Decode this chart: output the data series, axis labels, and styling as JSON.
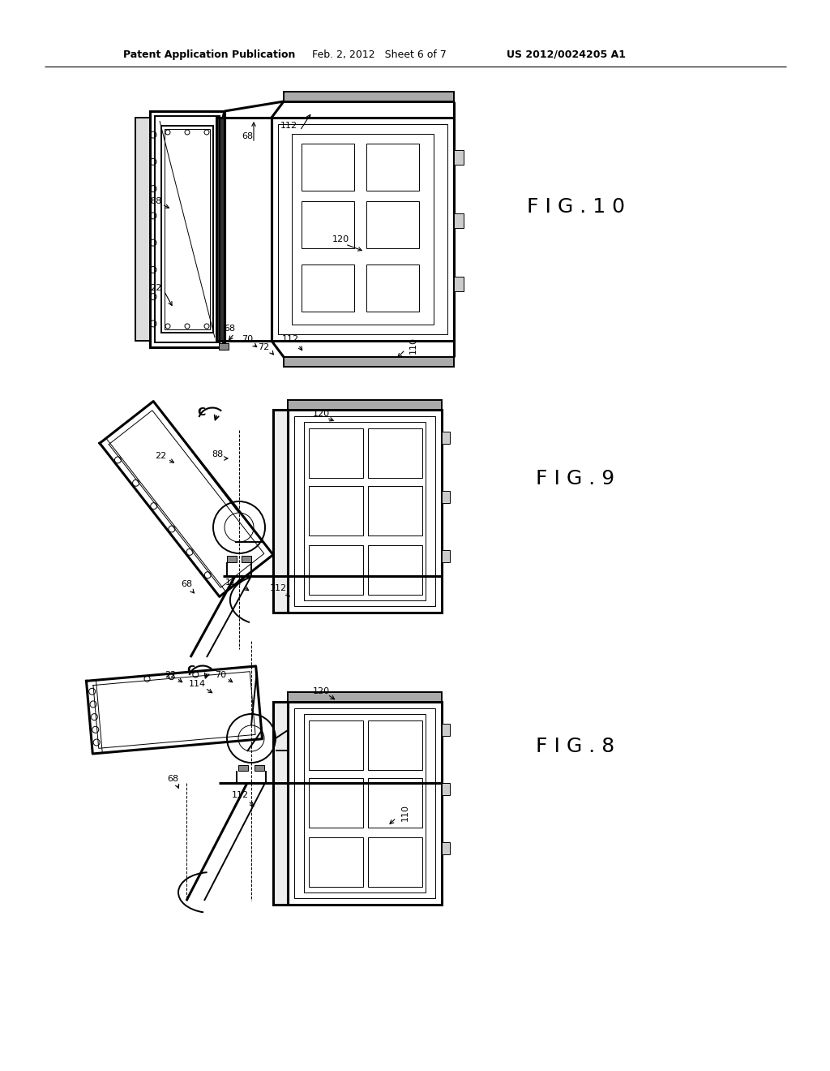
{
  "bg_color": "#ffffff",
  "line_color": "#000000",
  "header_left": "Patent Application Publication",
  "header_mid": "Feb. 2, 2012   Sheet 6 of 7",
  "header_right": "US 2012/0024205 A1",
  "fig_labels": {
    "fig10": "F I G . 1 0",
    "fig9": "F I G . 9",
    "fig8": "F I G . 8"
  },
  "lw_thin": 0.7,
  "lw_med": 1.4,
  "lw_thick": 2.2
}
